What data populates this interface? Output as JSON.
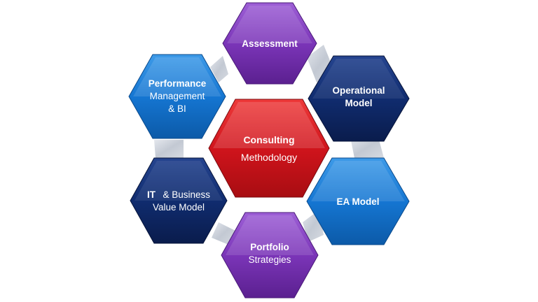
{
  "center": {
    "title": "Consulting",
    "subtitle": "Methodology",
    "color": "#d0141c"
  },
  "nodes": [
    {
      "id": "assessment",
      "line1": "Assessment",
      "line2": "",
      "color": "#7b35b8"
    },
    {
      "id": "operational",
      "line1": "Operational",
      "line2": "Model",
      "color": "#0f2a6e"
    },
    {
      "id": "ea-model",
      "line1": "EA Model",
      "line2": "",
      "color": "#1576d2"
    },
    {
      "id": "portfolio",
      "line1": "Portfolio",
      "line2": "Strategies",
      "color": "#7b35b8"
    },
    {
      "id": "it-business",
      "line1": "IT",
      "line1b": "& Business",
      "line2": "Value Model",
      "color": "#0f2a6e"
    },
    {
      "id": "performance",
      "line1": "Performance",
      "line2": "Management",
      "line3": "& BI",
      "color": "#1576d2"
    }
  ]
}
